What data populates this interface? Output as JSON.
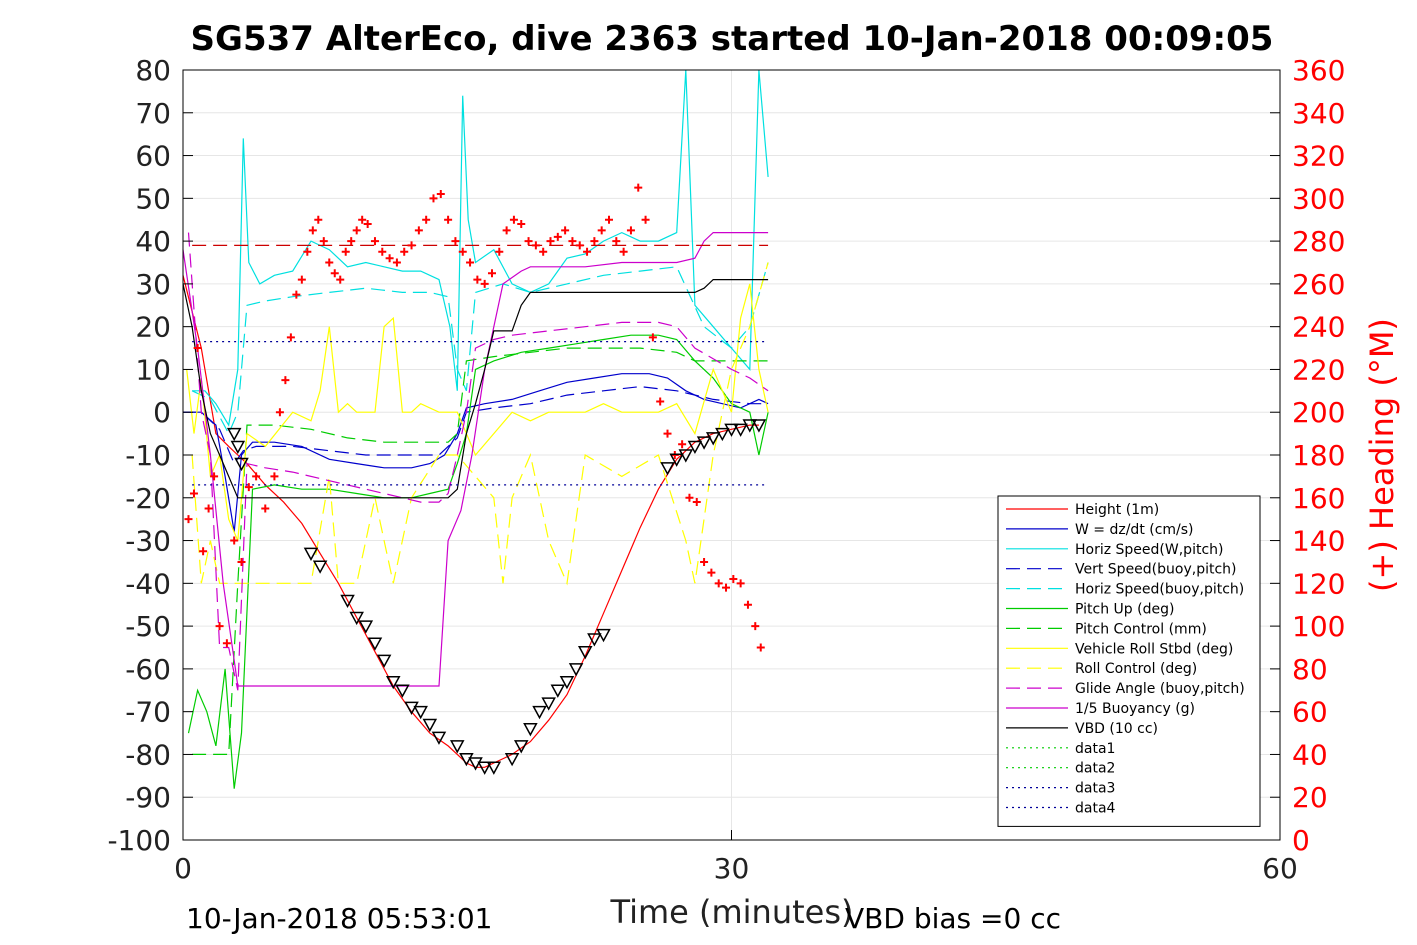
{
  "chart_data": {
    "type": "line",
    "title": "SG537 AlterEco, dive 2363 started 10-Jan-2018 00:09:05",
    "xlabel": "Time (minutes)",
    "ylabel_left": "",
    "ylabel_right": "(+) Heading (°M)",
    "xlim": [
      0,
      60
    ],
    "ylim_left": [
      -100,
      80
    ],
    "ylim_right": [
      0,
      360
    ],
    "x_ticks": [
      0,
      30,
      60
    ],
    "y_ticks_left": [
      -100,
      -90,
      -80,
      -70,
      -60,
      -50,
      -40,
      -30,
      -20,
      -10,
      0,
      10,
      20,
      30,
      40,
      50,
      60,
      70,
      80
    ],
    "y_ticks_right": [
      0,
      20,
      40,
      60,
      80,
      100,
      120,
      140,
      160,
      180,
      200,
      220,
      240,
      260,
      280,
      300,
      320,
      340,
      360
    ],
    "grid": true,
    "legend_position": "right",
    "footer_left": "10-Jan-2018 05:53:01",
    "footer_right": "VBD bias =0 cc",
    "series": [
      {
        "name": "Height (1m)",
        "color": "#ff0000",
        "style": "solid",
        "x": [
          0.0,
          1.0,
          1.8,
          2.5,
          3.0,
          3.5,
          4.5,
          5.5,
          6.5,
          7.5,
          8.5,
          9.5,
          10.5,
          11.5,
          12.5,
          13.5,
          14.5,
          15.0,
          15.5,
          16.0,
          16.5,
          17.0,
          18.0,
          19.0,
          20.0,
          21.0,
          22.0,
          23.0,
          24.0,
          25.0,
          26.0,
          27.0,
          28.0,
          29.0,
          30.0,
          31.0,
          31.5
        ],
        "y": [
          32,
          15,
          -5,
          -8,
          -10,
          -12,
          -17,
          -21,
          -26,
          -33,
          -40,
          -48,
          -56,
          -64,
          -70,
          -75,
          -78,
          -80,
          -82,
          -83,
          -83,
          -82,
          -80,
          -77,
          -72,
          -66,
          -57,
          -47,
          -37,
          -27,
          -18,
          -11,
          -7,
          -5,
          -4,
          -3,
          -3
        ]
      },
      {
        "name": "W = dz/dt (cm/s)",
        "color": "#0000cc",
        "style": "solid",
        "x": [
          0.0,
          1.0,
          1.8,
          2.3,
          2.8,
          3.2,
          3.8,
          5.0,
          6.5,
          8.0,
          9.5,
          11.0,
          12.5,
          13.5,
          14.3,
          15.0,
          15.5,
          16.5,
          18.0,
          19.5,
          21.0,
          22.5,
          24.0,
          25.5,
          26.5,
          27.5,
          28.5,
          29.5,
          30.5,
          31.5,
          32.0
        ],
        "y": [
          0,
          0,
          -3,
          -15,
          -28,
          -10,
          -7,
          -7,
          -8,
          -11,
          -12,
          -13,
          -13,
          -12,
          -10,
          -5,
          1,
          2,
          3,
          5,
          7,
          8,
          9,
          9,
          8,
          5,
          3,
          2,
          1,
          3,
          2
        ]
      },
      {
        "name": "Horiz Speed(W,pitch)",
        "color": "#00e0e0",
        "style": "solid",
        "x": [
          0.5,
          1.2,
          1.8,
          2.5,
          3.0,
          3.3,
          3.6,
          4.2,
          5.0,
          6.0,
          7.0,
          8.0,
          9.0,
          10.0,
          11.0,
          12.0,
          13.0,
          14.0,
          14.6,
          15.0,
          15.3,
          15.6,
          16.0,
          17.0,
          18.0,
          19.0,
          20.0,
          21.0,
          22.0,
          23.0,
          24.0,
          25.0,
          26.0,
          27.0,
          27.5,
          28.0,
          29.0,
          30.0,
          31.0,
          31.5,
          32.0
        ],
        "y": [
          5,
          5,
          2,
          -3,
          10,
          64,
          35,
          30,
          32,
          33,
          40,
          38,
          34,
          35,
          34,
          33,
          33,
          31,
          20,
          5,
          74,
          45,
          35,
          38,
          30,
          28,
          30,
          36,
          37,
          40,
          42,
          40,
          40,
          42,
          80,
          25,
          20,
          15,
          10,
          80,
          55
        ]
      },
      {
        "name": "Vert Speed(buoy,pitch)",
        "color": "#0000cc",
        "style": "dashed",
        "x": [
          0.0,
          1.0,
          2.0,
          2.8,
          3.3,
          4.0,
          6.0,
          8.0,
          10.0,
          12.0,
          14.0,
          15.0,
          15.5,
          17.0,
          19.0,
          21.0,
          23.0,
          25.0,
          27.0,
          29.0,
          31.0,
          32.0
        ],
        "y": [
          0,
          0,
          -4,
          -12,
          -9,
          -8,
          -8,
          -9,
          -10,
          -10,
          -10,
          -6,
          0,
          1,
          2,
          4,
          5,
          6,
          5,
          3,
          2,
          2
        ]
      },
      {
        "name": "Horiz Speed(buoy,pitch)",
        "color": "#00e0e0",
        "style": "dashed",
        "x": [
          0.5,
          1.5,
          2.5,
          3.0,
          3.5,
          4.5,
          6.0,
          8.0,
          10.0,
          12.0,
          13.5,
          14.5,
          15.0,
          15.5,
          16.0,
          17.5,
          19.0,
          21.0,
          23.0,
          25.0,
          27.0,
          28.5,
          30.0,
          31.0,
          32.0
        ],
        "y": [
          5,
          3,
          -5,
          0,
          25,
          26,
          27,
          28,
          29,
          28,
          28,
          27,
          10,
          5,
          28,
          30,
          28,
          30,
          32,
          33,
          34,
          20,
          15,
          20,
          35
        ]
      },
      {
        "name": "Pitch Up (deg)",
        "color": "#00cc00",
        "style": "solid",
        "x": [
          0.3,
          0.8,
          1.3,
          1.8,
          2.3,
          2.8,
          3.2,
          3.8,
          5.0,
          6.5,
          8.0,
          9.5,
          11.0,
          12.5,
          13.5,
          14.5,
          15.0,
          15.5,
          16.0,
          17.0,
          18.5,
          20.0,
          21.5,
          23.0,
          24.5,
          26.0,
          27.0,
          28.0,
          29.0,
          30.0,
          31.0,
          31.5,
          32.0
        ],
        "y": [
          -75,
          -65,
          -70,
          -78,
          -60,
          -88,
          -75,
          -18,
          -17,
          -18,
          -18,
          -19,
          -20,
          -20,
          -19,
          -18,
          -12,
          -5,
          10,
          12,
          14,
          15,
          16,
          17,
          18,
          18,
          17,
          12,
          8,
          2,
          0,
          -10,
          0
        ]
      },
      {
        "name": "Pitch Control (mm)",
        "color": "#00cc00",
        "style": "dashed",
        "x": [
          0.5,
          1.5,
          2.5,
          3.0,
          3.5,
          5.0,
          7.0,
          9.0,
          11.0,
          13.0,
          14.5,
          15.0,
          15.5,
          17.0,
          19.0,
          21.0,
          23.0,
          25.0,
          27.0,
          28.0,
          30.0,
          32.0
        ],
        "y": [
          -80,
          -80,
          -80,
          -40,
          -3,
          -3,
          -4,
          -6,
          -7,
          -7,
          -7,
          -5,
          12,
          13,
          14,
          15,
          15,
          15,
          14,
          12,
          12,
          12
        ]
      },
      {
        "name": "Vehicle Roll Stbd (deg)",
        "color": "#ffff00",
        "style": "solid",
        "x": [
          0.2,
          0.6,
          1.0,
          1.5,
          2.0,
          2.5,
          3.0,
          3.5,
          4.5,
          6.0,
          7.0,
          7.5,
          8.0,
          8.5,
          9.0,
          9.5,
          10.0,
          10.5,
          11.0,
          11.5,
          12.0,
          12.5,
          13.0,
          14.0,
          15.0,
          16.0,
          17.0,
          18.0,
          19.0,
          20.0,
          21.0,
          22.0,
          23.0,
          24.0,
          25.0,
          26.0,
          27.0,
          28.0,
          29.0,
          30.0,
          30.5,
          31.0,
          31.5,
          32.0
        ],
        "y": [
          10,
          -5,
          8,
          -15,
          -10,
          -25,
          -30,
          -5,
          -8,
          0,
          -2,
          5,
          20,
          0,
          2,
          0,
          0,
          0,
          20,
          22,
          0,
          0,
          2,
          0,
          0,
          -10,
          -5,
          0,
          -2,
          0,
          0,
          0,
          2,
          0,
          0,
          0,
          2,
          -5,
          10,
          0,
          22,
          30,
          10,
          0
        ]
      },
      {
        "name": "Roll Control (deg)",
        "color": "#ffff00",
        "style": "dashed",
        "x": [
          0.5,
          1.0,
          1.5,
          2.0,
          3.0,
          3.5,
          5.0,
          7.0,
          8.0,
          8.5,
          9.5,
          10.5,
          11.0,
          11.5,
          12.5,
          14.0,
          15.0,
          16.0,
          17.0,
          17.5,
          18.0,
          19.0,
          20.0,
          21.0,
          22.0,
          24.0,
          26.0,
          27.5,
          28.0,
          29.0,
          30.0,
          31.0,
          32.0
        ],
        "y": [
          -10,
          -40,
          -30,
          -40,
          -40,
          -40,
          -40,
          -40,
          -15,
          -40,
          -40,
          -20,
          -30,
          -40,
          -20,
          -10,
          -10,
          -15,
          -20,
          -40,
          -20,
          -10,
          -30,
          -40,
          -10,
          -15,
          -10,
          -30,
          -40,
          -10,
          10,
          20,
          35
        ]
      },
      {
        "name": "Glide Angle (buoy,pitch)",
        "color": "#cc00cc",
        "style": "dashed",
        "x": [
          0.3,
          1.0,
          1.5,
          2.0,
          2.5,
          3.0,
          3.5,
          4.5,
          6.0,
          8.0,
          10.0,
          12.0,
          13.0,
          14.0,
          14.5,
          15.0,
          15.5,
          16.0,
          17.0,
          18.0,
          20.0,
          22.0,
          24.0,
          26.0,
          27.0,
          28.0,
          30.0,
          31.0,
          32.0
        ],
        "y": [
          42,
          0,
          -10,
          -55,
          -55,
          -65,
          -12,
          -13,
          -14,
          -16,
          -18,
          -20,
          -21,
          -21,
          -19,
          -10,
          0,
          15,
          17,
          18,
          19,
          20,
          21,
          21,
          20,
          15,
          10,
          8,
          5
        ]
      },
      {
        "name": "1/5 Buoyancy (g)",
        "color": "#cc00cc",
        "style": "solid",
        "x": [
          0.0,
          0.8,
          1.5,
          2.2,
          2.8,
          3.0,
          5.0,
          7.0,
          10.0,
          12.0,
          13.5,
          14.0,
          14.5,
          15.2,
          15.8,
          16.5,
          17.5,
          18.5,
          19.0,
          20.0,
          22.0,
          24.0,
          26.0,
          27.0,
          28.0,
          28.5,
          29.0,
          30.0,
          31.0,
          32.0
        ],
        "y": [
          38,
          15,
          -10,
          -40,
          -58,
          -64,
          -64,
          -64,
          -64,
          -64,
          -64,
          -64,
          -30,
          -23,
          -10,
          10,
          30,
          33,
          34,
          34,
          34,
          35,
          35,
          35,
          36,
          40,
          42,
          42,
          42,
          42
        ]
      },
      {
        "name": "VBD (10 cc)",
        "color": "#000000",
        "style": "solid",
        "x": [
          0.0,
          0.5,
          1.0,
          1.5,
          2.0,
          2.5,
          3.0,
          5.0,
          8.0,
          11.0,
          13.0,
          14.0,
          14.5,
          15.0,
          15.5,
          16.0,
          16.5,
          17.0,
          17.5,
          18.0,
          18.5,
          19.0,
          20.0,
          24.0,
          26.0,
          27.0,
          28.0,
          28.5,
          29.0,
          30.0,
          32.0
        ],
        "y": [
          30,
          20,
          5,
          -5,
          -10,
          -15,
          -20,
          -20,
          -20,
          -20,
          -20,
          -20,
          -20,
          -18,
          -5,
          2,
          10,
          19,
          19,
          19,
          25,
          28,
          28,
          28,
          28,
          28,
          28,
          29,
          31,
          31,
          31
        ]
      },
      {
        "name": "data1",
        "color": "#00cc00",
        "style": "dotted",
        "x": [],
        "y": []
      },
      {
        "name": "data2",
        "color": "#00cc00",
        "style": "dotted",
        "x": [],
        "y": []
      },
      {
        "name": "data3",
        "color": "#000099",
        "style": "dotted",
        "x": [
          0.5,
          32.0
        ],
        "y": [
          16.5,
          16.5
        ]
      },
      {
        "name": "data4",
        "color": "#000099",
        "style": "dotted",
        "x": [
          0.5,
          32.0
        ],
        "y": [
          -17,
          -17
        ]
      }
    ],
    "heading_reference": {
      "color": "#cc0000",
      "style": "dashed",
      "x": [
        0.5,
        32.0
      ],
      "y": 278
    },
    "heading_points": {
      "color": "#ff0000",
      "marker": "+",
      "x": [
        0.3,
        0.6,
        0.8,
        1.1,
        1.4,
        1.7,
        2.0,
        2.4,
        2.8,
        3.2,
        3.6,
        4.0,
        4.5,
        5.0,
        5.3,
        5.6,
        5.9,
        6.2,
        6.5,
        6.8,
        7.1,
        7.4,
        7.7,
        8.0,
        8.3,
        8.6,
        8.9,
        9.2,
        9.5,
        9.8,
        10.1,
        10.5,
        10.9,
        11.3,
        11.7,
        12.1,
        12.5,
        12.9,
        13.3,
        13.7,
        14.1,
        14.5,
        14.9,
        15.3,
        15.7,
        16.1,
        16.5,
        16.9,
        17.3,
        17.7,
        18.1,
        18.5,
        18.9,
        19.3,
        19.7,
        20.1,
        20.5,
        20.9,
        21.3,
        21.7,
        22.1,
        22.5,
        22.9,
        23.3,
        23.7,
        24.1,
        24.5,
        24.9,
        25.3,
        25.7,
        26.1,
        26.5,
        26.9,
        27.3,
        27.7,
        28.1,
        28.5,
        28.9,
        29.3,
        29.7,
        30.1,
        30.5,
        30.9,
        31.3,
        31.6
      ],
      "y": [
        150,
        162,
        230,
        135,
        155,
        170,
        100,
        92,
        140,
        130,
        165,
        170,
        155,
        170,
        200,
        215,
        235,
        255,
        262,
        275,
        285,
        290,
        280,
        270,
        265,
        262,
        275,
        280,
        285,
        290,
        288,
        280,
        275,
        272,
        270,
        275,
        278,
        285,
        290,
        300,
        302,
        290,
        280,
        275,
        270,
        262,
        260,
        265,
        275,
        285,
        290,
        288,
        280,
        278,
        275,
        280,
        282,
        285,
        280,
        278,
        275,
        280,
        285,
        290,
        280,
        275,
        285,
        305,
        290,
        235,
        205,
        190,
        180,
        185,
        160,
        158,
        130,
        125,
        120,
        118,
        122,
        120,
        110,
        100,
        90
      ]
    },
    "triangle_markers": {
      "color": "#000000",
      "x": [
        2.8,
        3.0,
        3.2,
        7.0,
        7.5,
        9.0,
        9.5,
        10.0,
        10.5,
        11.0,
        11.5,
        12.0,
        12.5,
        13.0,
        13.5,
        14.0,
        15.0,
        15.5,
        16.0,
        16.5,
        17.0,
        18.0,
        18.5,
        19.0,
        19.5,
        20.0,
        20.5,
        21.0,
        21.5,
        22.0,
        22.5,
        23.0,
        26.5,
        27.0,
        27.5,
        28.0,
        28.5,
        29.0,
        29.5,
        30.0,
        30.5,
        31.0,
        31.5
      ],
      "y": [
        -5,
        -8,
        -12,
        -33,
        -36,
        -44,
        -48,
        -50,
        -54,
        -58,
        -63,
        -65,
        -69,
        -70,
        -73,
        -76,
        -78,
        -81,
        -82,
        -83,
        -83,
        -81,
        -78,
        -74,
        -70,
        -68,
        -65,
        -63,
        -60,
        -56,
        -53,
        -52,
        -13,
        -11,
        -10,
        -8,
        -7,
        -6,
        -5,
        -4,
        -4,
        -3,
        -3
      ]
    }
  }
}
